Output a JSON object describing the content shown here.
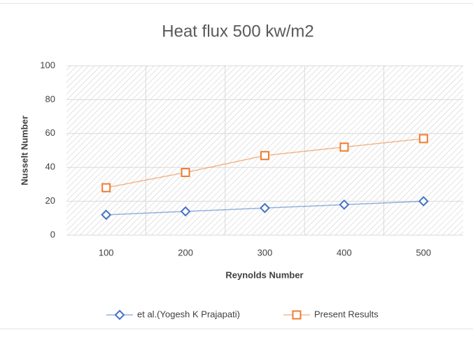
{
  "chart_data": {
    "type": "line",
    "title": "Heat flux 500 kw/m2",
    "x_label": "Reynolds Number",
    "y_label": "Nusselt Number",
    "categories": [
      "100",
      "200",
      "300",
      "400",
      "500"
    ],
    "series": [
      {
        "name": "et al.(Yogesh K Prajapati)",
        "color": "#4472c4",
        "marker": "diamond",
        "values": [
          12,
          14,
          16,
          18,
          20
        ]
      },
      {
        "name": "Present Results",
        "color": "#ed7d31",
        "marker": "square",
        "values": [
          28,
          37,
          47,
          52,
          57
        ]
      }
    ],
    "ylim": [
      0,
      100
    ],
    "yticks": [
      0,
      20,
      40,
      60,
      80,
      100
    ],
    "grid": true,
    "legend": "bottom"
  }
}
